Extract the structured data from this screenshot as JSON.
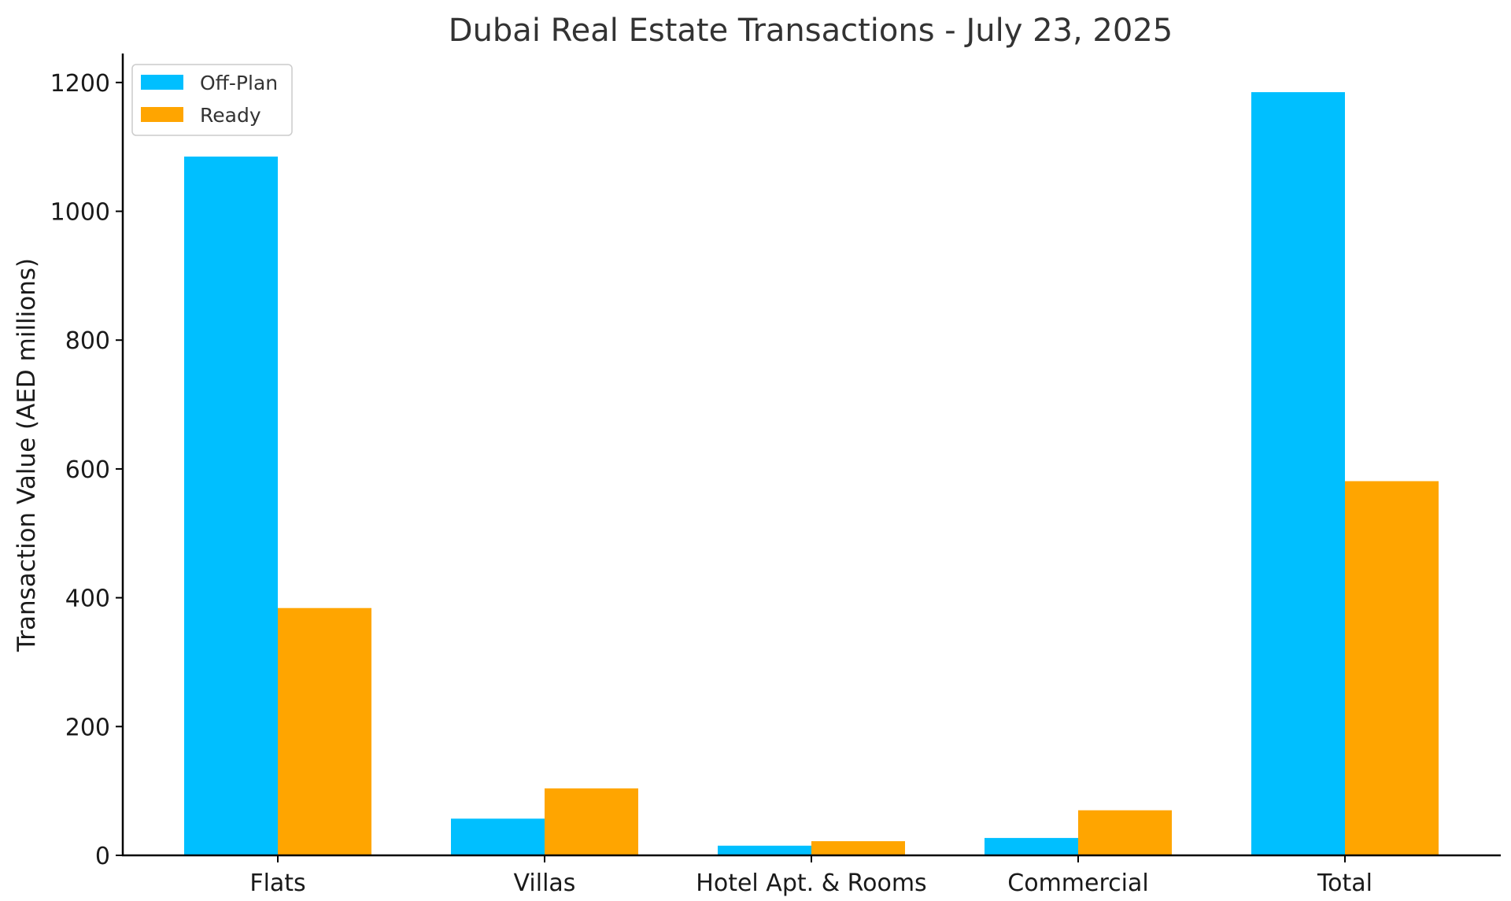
{
  "chart_data": {
    "type": "bar",
    "title": "Dubai Real Estate Transactions - July 23, 2025",
    "xlabel": "",
    "ylabel": "Transaction Value (AED millions)",
    "categories": [
      "Flats",
      "Villas",
      "Hotel Apt. & Rooms",
      "Commercial",
      "Total"
    ],
    "series": [
      {
        "name": "Off-Plan",
        "color": "#00BFFF",
        "values": [
          1085,
          57,
          15,
          27,
          1185
        ]
      },
      {
        "name": "Ready",
        "color": "#FFA500",
        "values": [
          384,
          104,
          22,
          70,
          581
        ]
      }
    ],
    "ylim": [
      0,
      1245
    ],
    "yticks": [
      0,
      200,
      400,
      600,
      800,
      1000,
      1200
    ],
    "grid": false,
    "legend_position": "top-left"
  }
}
